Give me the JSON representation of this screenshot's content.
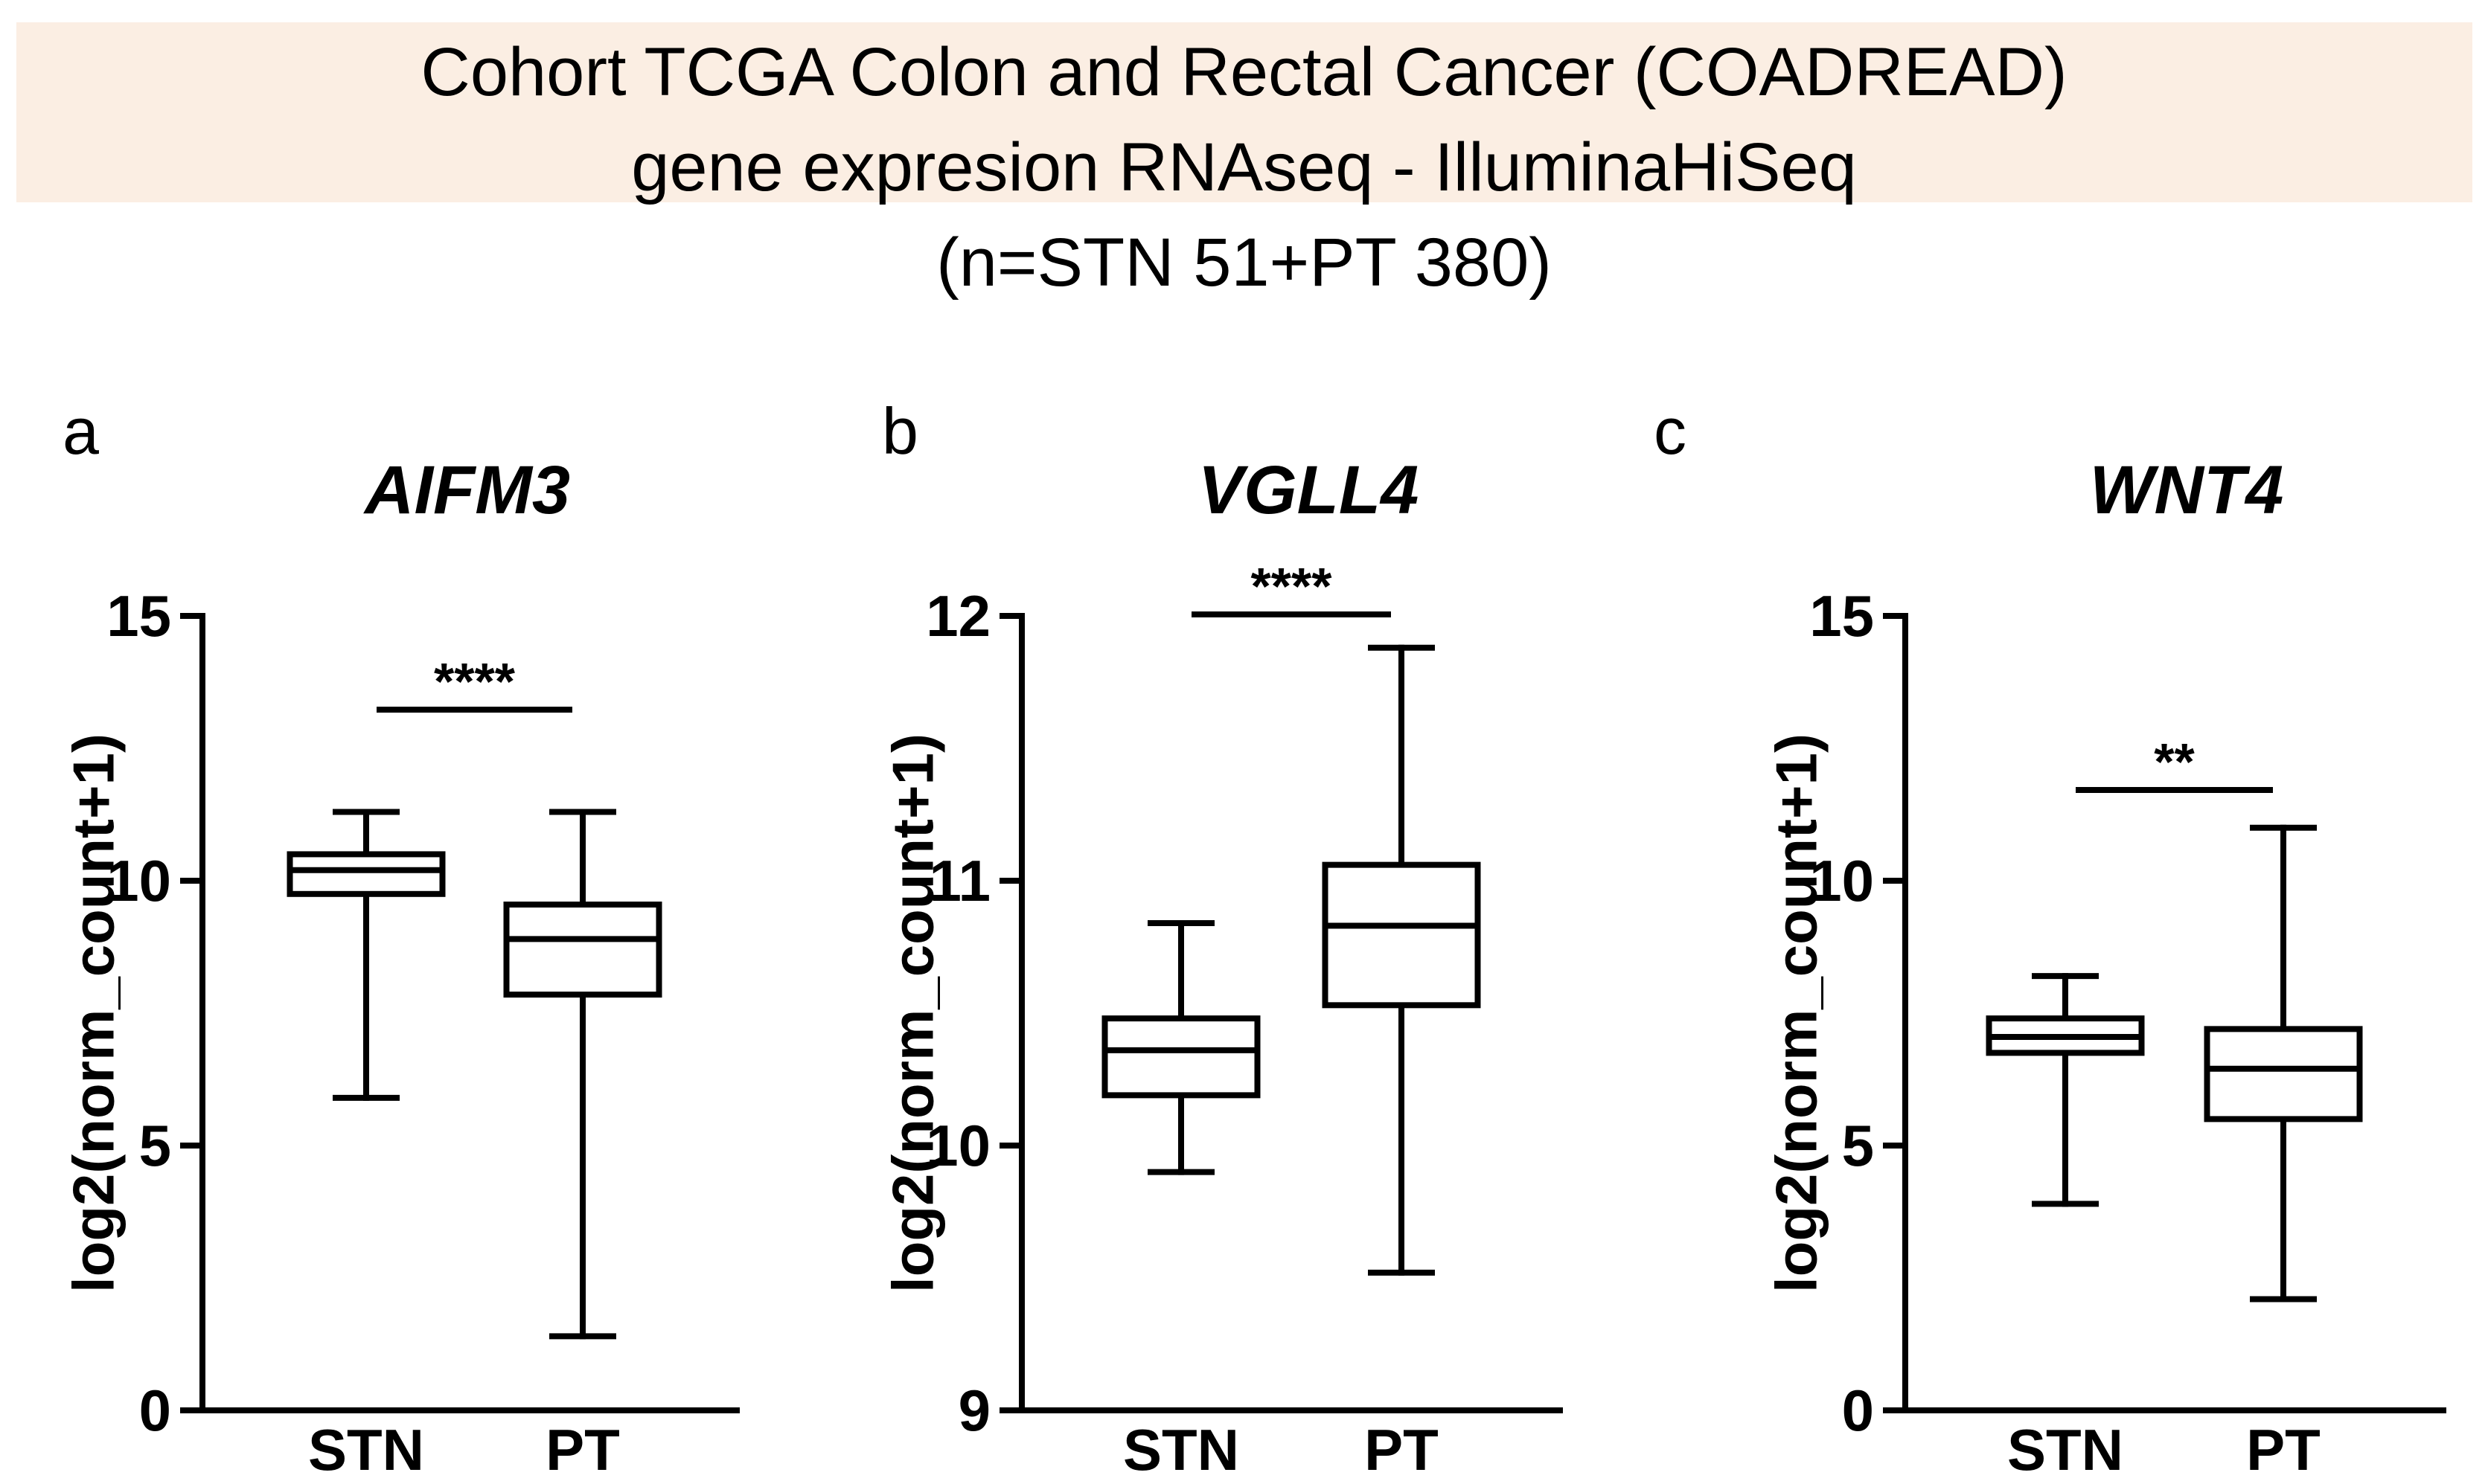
{
  "header": {
    "line1": "Cohort TCGA Colon and Rectal Cancer (COADREAD)",
    "line2": "gene expresion RNAseq - IlluminaHiSeq",
    "line3": "(n=STN 51+PT 380)"
  },
  "chart_data": [
    {
      "type": "box",
      "panel": "a",
      "title": "AIFM3",
      "ylabel": "log2(norm_count+1)",
      "ylim": [
        0,
        15
      ],
      "yticks": [
        0,
        5,
        10,
        15
      ],
      "ytick_labels": [
        "0",
        "5",
        "10",
        "15"
      ],
      "categories": [
        "STN",
        "PT"
      ],
      "boxes": [
        {
          "label": "STN",
          "min": 5.9,
          "q1": 9.75,
          "median": 10.2,
          "q3": 10.5,
          "max": 11.3
        },
        {
          "label": "PT",
          "min": 1.4,
          "q1": 7.85,
          "median": 8.9,
          "q3": 9.55,
          "max": 11.3
        }
      ],
      "significance": "****"
    },
    {
      "type": "box",
      "panel": "b",
      "title": "VGLL4",
      "ylabel": "log2(norm_count+1)",
      "ylim": [
        9,
        12
      ],
      "yticks": [
        9,
        10,
        11,
        12
      ],
      "ytick_labels": [
        "9",
        "10",
        "11",
        "12"
      ],
      "categories": [
        "STN",
        "PT"
      ],
      "boxes": [
        {
          "label": "STN",
          "min": 9.9,
          "q1": 10.19,
          "median": 10.36,
          "q3": 10.48,
          "max": 10.84
        },
        {
          "label": "PT",
          "min": 9.52,
          "q1": 10.53,
          "median": 10.83,
          "q3": 11.06,
          "max": 11.88
        }
      ],
      "significance": "****"
    },
    {
      "type": "box",
      "panel": "c",
      "title": "WNT4",
      "ylabel": "log2(norm_count+1)",
      "ylim": [
        0,
        15
      ],
      "yticks": [
        0,
        5,
        10,
        15
      ],
      "ytick_labels": [
        "0",
        "5",
        "10",
        "15"
      ],
      "categories": [
        "STN",
        "PT"
      ],
      "boxes": [
        {
          "label": "STN",
          "min": 3.9,
          "q1": 6.75,
          "median": 7.05,
          "q3": 7.4,
          "max": 8.2
        },
        {
          "label": "PT",
          "min": 2.1,
          "q1": 5.5,
          "median": 6.45,
          "q3": 7.2,
          "max": 11.0
        }
      ],
      "significance": "**"
    }
  ]
}
